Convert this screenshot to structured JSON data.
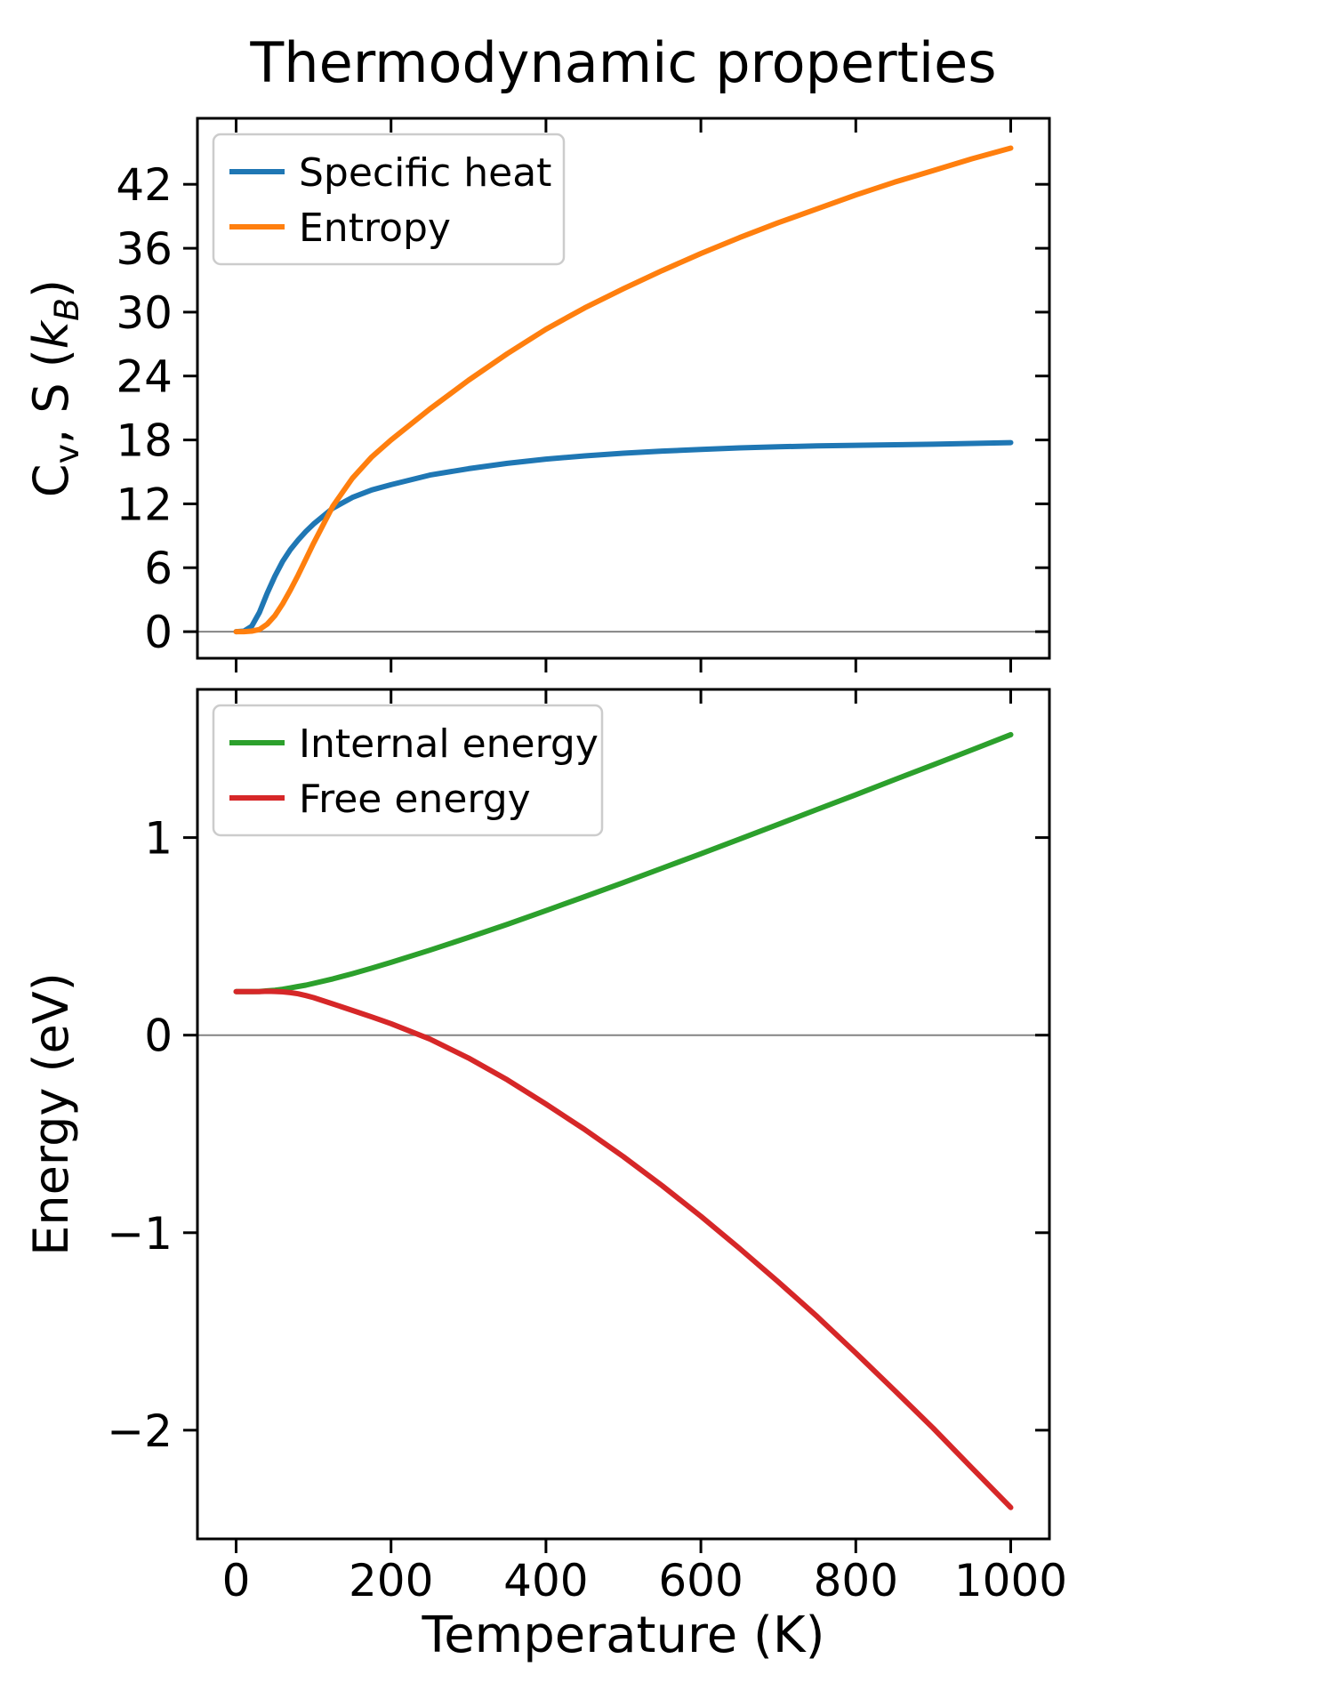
{
  "figure": {
    "title": "Thermodynamic properties",
    "xlabel": "Temperature (K)",
    "background": "#ffffff"
  },
  "styles": {
    "spine_color": "#000000",
    "zero_line_color": "#848484",
    "legend_border_color": "#cccccc",
    "legend_fill_color": "#ffffff"
  },
  "chart_data": [
    {
      "type": "line",
      "ylabel": "Cv, S (kB)",
      "ylabel_parts": [
        {
          "t": "C"
        },
        {
          "t": "v",
          "sub": true
        },
        {
          "t": ", S ("
        },
        {
          "t": "k",
          "italic": true
        },
        {
          "t": "B",
          "sub": true,
          "italic": true
        },
        {
          "t": ")"
        }
      ],
      "x": [
        0,
        10,
        20,
        30,
        40,
        50,
        60,
        70,
        80,
        90,
        100,
        125,
        150,
        175,
        200,
        250,
        300,
        350,
        400,
        450,
        500,
        550,
        600,
        650,
        700,
        750,
        800,
        850,
        900,
        950,
        1000
      ],
      "series": [
        {
          "name": "Specific heat",
          "color": "#1f77b4",
          "values": [
            0,
            0.05,
            0.5,
            1.8,
            3.6,
            5.2,
            6.6,
            7.7,
            8.6,
            9.4,
            10.1,
            11.6,
            12.6,
            13.3,
            13.8,
            14.7,
            15.3,
            15.8,
            16.2,
            16.5,
            16.75,
            16.95,
            17.1,
            17.25,
            17.35,
            17.45,
            17.5,
            17.55,
            17.6,
            17.67,
            17.75
          ]
        },
        {
          "name": "Entropy",
          "color": "#ff7f0e",
          "values": [
            0,
            0,
            0.05,
            0.2,
            0.7,
            1.5,
            2.6,
            3.9,
            5.3,
            6.8,
            8.3,
            11.8,
            14.4,
            16.4,
            18.0,
            20.9,
            23.6,
            26.1,
            28.4,
            30.4,
            32.2,
            33.9,
            35.5,
            37.0,
            38.4,
            39.7,
            41.0,
            42.2,
            43.3,
            44.4,
            45.4
          ]
        }
      ],
      "xlim": [
        -50,
        1050
      ],
      "ylim": [
        -2.5,
        48.2
      ],
      "xticks": [
        0,
        200,
        400,
        600,
        800,
        1000
      ],
      "yticks": [
        0,
        6,
        12,
        18,
        24,
        30,
        36,
        42
      ],
      "show_xtick_labels": false,
      "zero_line": true,
      "grid": false,
      "legend_position": "upper left"
    },
    {
      "type": "line",
      "ylabel": "Energy (eV)",
      "ylabel_parts": [
        {
          "t": "Energy (eV)"
        }
      ],
      "x": [
        0,
        10,
        20,
        30,
        40,
        50,
        60,
        70,
        80,
        90,
        100,
        125,
        150,
        175,
        200,
        250,
        300,
        350,
        400,
        450,
        500,
        550,
        600,
        650,
        700,
        750,
        800,
        850,
        900,
        950,
        1000
      ],
      "series": [
        {
          "name": "Internal energy",
          "color": "#2ca02c",
          "values": [
            0.22,
            0.22,
            0.22,
            0.221,
            0.224,
            0.227,
            0.232,
            0.239,
            0.246,
            0.253,
            0.262,
            0.285,
            0.311,
            0.339,
            0.368,
            0.43,
            0.494,
            0.561,
            0.63,
            0.701,
            0.772,
            0.845,
            0.918,
            0.992,
            1.067,
            1.142,
            1.217,
            1.293,
            1.368,
            1.444,
            1.521
          ]
        },
        {
          "name": "Free energy",
          "color": "#d62728",
          "values": [
            0.22,
            0.22,
            0.22,
            0.22,
            0.222,
            0.221,
            0.219,
            0.215,
            0.209,
            0.2,
            0.19,
            0.158,
            0.125,
            0.092,
            0.058,
            -0.02,
            -0.116,
            -0.226,
            -0.349,
            -0.478,
            -0.615,
            -0.762,
            -0.917,
            -1.08,
            -1.249,
            -1.424,
            -1.609,
            -1.798,
            -1.99,
            -2.191,
            -2.391
          ]
        }
      ],
      "xlim": [
        -50,
        1050
      ],
      "ylim": [
        -2.55,
        1.75
      ],
      "xticks": [
        0,
        200,
        400,
        600,
        800,
        1000
      ],
      "yticks": [
        -2,
        -1,
        0,
        1
      ],
      "show_xtick_labels": true,
      "zero_line": true,
      "grid": false,
      "legend_position": "upper left"
    }
  ]
}
